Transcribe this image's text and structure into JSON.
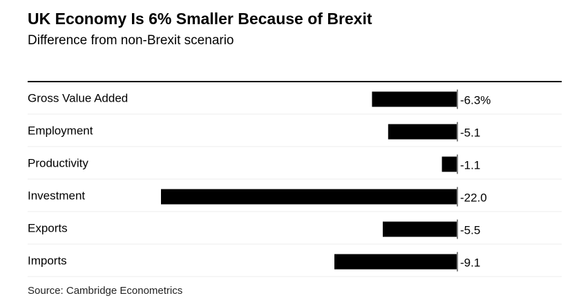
{
  "chart_data": {
    "type": "bar",
    "orientation": "horizontal",
    "title": "UK Economy Is 6% Smaller Because of Brexit",
    "subtitle": "Difference from non-Brexit scenario",
    "source": "Source: Cambridge Econometrics",
    "categories": [
      "Gross Value Added",
      "Employment",
      "Productivity",
      "Investment",
      "Exports",
      "Imports"
    ],
    "values": [
      -6.3,
      -5.1,
      -1.1,
      -22.0,
      -5.5,
      -9.1
    ],
    "value_labels": [
      "-6.3%",
      "-5.1",
      "-1.1",
      "-22.0",
      "-5.5",
      "-9.1"
    ],
    "xlim": [
      -22.0,
      0
    ],
    "grid": false,
    "colors": {
      "bar": "#000000",
      "separator": "#eeeeee"
    }
  }
}
